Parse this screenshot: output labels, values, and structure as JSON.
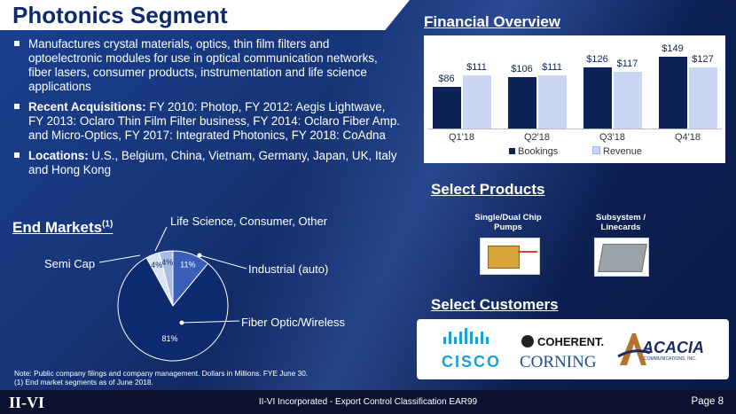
{
  "title": "Photonics Segment",
  "bullets": [
    {
      "lead": "",
      "text": "Manufactures crystal materials, optics, thin film filters and optoelectronic modules for use in optical communication networks, fiber lasers, consumer products, instrumentation and life science applications"
    },
    {
      "lead": "Recent Acquisitions:",
      "text": " FY 2010: Photop, FY 2012: Aegis Lightwave, FY 2013: Oclaro Thin Film Filter business, FY 2014: Oclaro Fiber Amp. and Micro-Optics, FY 2017: Integrated Photonics, FY 2018: CoAdna"
    },
    {
      "lead": "Locations:",
      "text": " U.S., Belgium, China, Vietnam, Germany, Japan, UK, Italy and Hong Kong"
    }
  ],
  "end_markets": {
    "heading": "End Markets",
    "sup": "(1)",
    "labels": {
      "life": "Life Science, Consumer, Other",
      "semi": "Semi Cap",
      "industrial": "Industrial (auto)",
      "fiber": "Fiber Optic/Wireless"
    }
  },
  "chart_data": {
    "type": "bar",
    "title": "Financial Overview",
    "categories": [
      "Q1'18",
      "Q2'18",
      "Q3'18",
      "Q4'18"
    ],
    "series": [
      {
        "name": "Bookings",
        "values": [
          86,
          106,
          126,
          149
        ],
        "labels": [
          "$86",
          "$106",
          "$126",
          "$149"
        ],
        "color": "#0d2257"
      },
      {
        "name": "Revenue",
        "values": [
          111,
          111,
          117,
          127
        ],
        "labels": [
          "$111",
          "$111",
          "$117",
          "$127"
        ],
        "color": "#c9d7f5"
      }
    ],
    "ylim": [
      0,
      160
    ]
  },
  "pie_data": {
    "type": "pie",
    "slices": [
      {
        "name": "Industrial (auto)",
        "value": 11,
        "label": "11%",
        "color": "#3a5fb8"
      },
      {
        "name": "Fiber Optic/Wireless",
        "value": 81,
        "label": "81%",
        "color": "#0d2a6e"
      },
      {
        "name": "Semi Cap",
        "value": 4,
        "label": "4%",
        "color": "#dbe4f5"
      },
      {
        "name": "Life Science, Consumer, Other",
        "value": 4,
        "label": "4%",
        "color": "#a8bce6"
      }
    ]
  },
  "products": {
    "heading": "Select Products",
    "items": [
      {
        "label1": "Single/Dual Chip",
        "label2": "Pumps"
      },
      {
        "label1": "Subsystem /",
        "label2": "Linecards"
      }
    ]
  },
  "customers": {
    "heading": "Select Customers",
    "cisco": "CISCO",
    "coherent": "COHERENT.",
    "corning": "CORNING",
    "acacia": "ACACIA",
    "acacia_sub": "COMMUNICATIONS, INC."
  },
  "note": {
    "line1": "Note: Public company filings and company management. Dollars in Millions. FYE June 30.",
    "line2": "(1)  End market segments as of June 2018."
  },
  "footer": {
    "logo": "II-VI",
    "center": "II-VI Incorporated - Export Control Classification EAR99",
    "page": "Page 8"
  }
}
